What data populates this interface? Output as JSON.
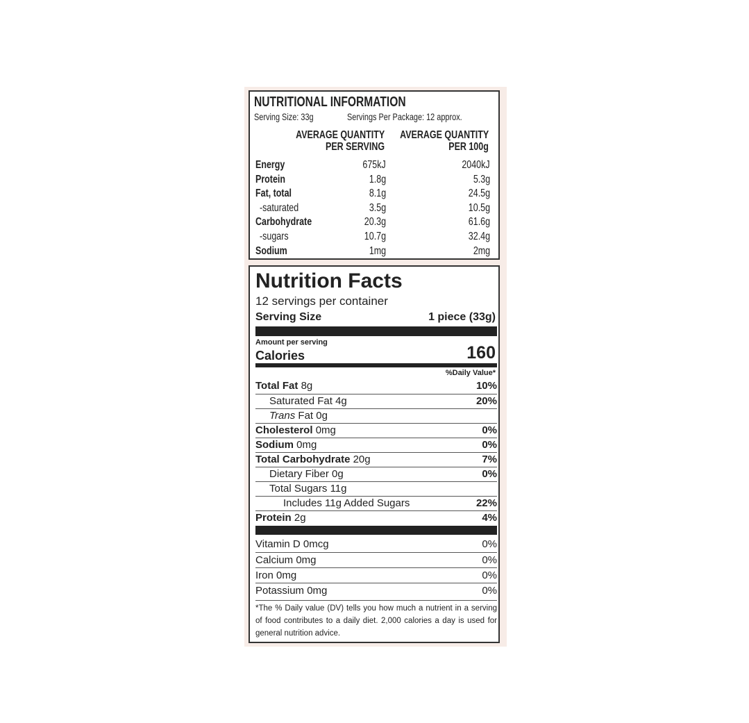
{
  "au_panel": {
    "title": "NUTRITIONAL INFORMATION",
    "serving_size": "Serving Size: 33g",
    "servings_per_package": "Servings Per Package: 12 approx.",
    "headers": [
      [
        "AVERAGE QUANTITY",
        "PER SERVING"
      ],
      [
        "AVERAGE QUANTITY",
        "PER 100g"
      ]
    ],
    "rows": [
      [
        "Energy",
        "675kJ",
        "2040kJ"
      ],
      [
        "Protein",
        "1.8g",
        "5.3g"
      ],
      [
        "Fat, total",
        "8.1g",
        "24.5g"
      ],
      [
        "-saturated",
        "3.5g",
        "10.5g"
      ],
      [
        "Carbohydrate",
        "20.3g",
        "61.6g"
      ],
      [
        "-sugars",
        "10.7g",
        "32.4g"
      ],
      [
        "Sodium",
        "1mg",
        "2mg"
      ]
    ]
  },
  "us_panel": {
    "title": "Nutrition Facts",
    "servings": "12 servings per container",
    "serving_size_label": "Serving Size",
    "serving_size_value": "1 piece (33g)",
    "amount_per_serving": "Amount per serving",
    "calories_label": "Calories",
    "calories_value": "160",
    "daily_value_header": "%Daily Value*",
    "nutrients": [
      {
        "name": "Total Fat",
        "amount": "8g",
        "dv": "10%"
      },
      {
        "name": "Saturated Fat",
        "amount": "4g",
        "dv": "20%"
      },
      {
        "italic": "Trans",
        "name": "Fat",
        "amount": "0g"
      },
      {
        "name": "Cholesterol",
        "amount": "0mg",
        "dv": "0%"
      },
      {
        "name": "Sodium",
        "amount": "0mg",
        "dv": "0%"
      },
      {
        "name": "Total Carbohydrate",
        "amount": "20g",
        "dv": "7%"
      },
      {
        "name": "Dietary Fiber",
        "amount": "0g",
        "dv": "0%"
      },
      {
        "name": "Total Sugars",
        "amount": "11g"
      },
      {
        "name": "Includes 11g Added Sugars",
        "dv": "22%"
      },
      {
        "name": "Protein",
        "amount": "2g",
        "dv": "4%"
      }
    ],
    "vitamins": [
      {
        "name": "Vitamin D 0mcg",
        "dv": "0%"
      },
      {
        "name": "Calcium 0mg",
        "dv": "0%"
      },
      {
        "name": "Iron 0mg",
        "dv": "0%"
      },
      {
        "name": "Potassium 0mg",
        "dv": "0%"
      }
    ],
    "footnote": "*The % Daily value (DV) tells you how much a nutrient in a serving of food contributes to a daily diet. 2,000 calories a day is used for general nutrition advice."
  }
}
